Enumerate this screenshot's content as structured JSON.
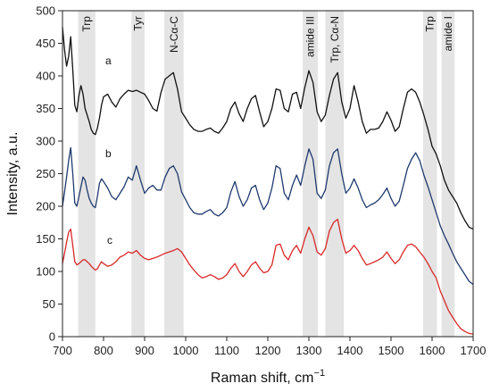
{
  "chart_data": {
    "type": "line",
    "xlabel": "Raman shift, cm",
    "xlabel_sup": "−1",
    "ylabel": "Intensity, a.u.",
    "xlim": [
      700,
      1700
    ],
    "ylim": [
      0,
      500
    ],
    "xticks": [
      700,
      800,
      900,
      1000,
      1100,
      1200,
      1300,
      1400,
      1500,
      1600,
      1700
    ],
    "yticks": [
      0,
      50,
      100,
      150,
      200,
      250,
      300,
      350,
      400,
      450,
      500
    ],
    "grid": false,
    "bands": [
      {
        "label": "Trp",
        "x0": 738,
        "x1": 780
      },
      {
        "label": "Tyr",
        "x0": 868,
        "x1": 900
      },
      {
        "label": "N-Cα-C",
        "x0": 948,
        "x1": 995
      },
      {
        "label": "amide III",
        "x0": 1285,
        "x1": 1322
      },
      {
        "label": "Trp, Cα-N",
        "x0": 1340,
        "x1": 1385
      },
      {
        "label": "Trp",
        "x0": 1578,
        "x1": 1612
      },
      {
        "label": "amide I",
        "x0": 1623,
        "x1": 1655
      }
    ],
    "series": [
      {
        "name": "a",
        "color": "#111111",
        "x": [
          700,
          705,
          710,
          715,
          720,
          725,
          730,
          735,
          740,
          745,
          750,
          755,
          760,
          765,
          770,
          775,
          780,
          785,
          790,
          795,
          800,
          810,
          820,
          830,
          840,
          850,
          860,
          870,
          880,
          890,
          900,
          910,
          920,
          930,
          940,
          950,
          960,
          970,
          980,
          990,
          1000,
          1010,
          1020,
          1030,
          1040,
          1050,
          1060,
          1070,
          1080,
          1090,
          1100,
          1110,
          1120,
          1130,
          1140,
          1150,
          1160,
          1170,
          1180,
          1190,
          1200,
          1210,
          1220,
          1230,
          1240,
          1250,
          1260,
          1270,
          1280,
          1290,
          1300,
          1310,
          1320,
          1330,
          1340,
          1350,
          1360,
          1370,
          1380,
          1390,
          1400,
          1410,
          1420,
          1430,
          1440,
          1450,
          1460,
          1470,
          1480,
          1490,
          1500,
          1510,
          1520,
          1530,
          1540,
          1550,
          1560,
          1570,
          1580,
          1590,
          1600,
          1610,
          1620,
          1630,
          1640,
          1650,
          1660,
          1670,
          1680,
          1690,
          1700
        ],
        "y": [
          475,
          440,
          415,
          430,
          460,
          410,
          355,
          345,
          370,
          385,
          372,
          350,
          340,
          330,
          318,
          312,
          310,
          320,
          335,
          355,
          368,
          372,
          360,
          352,
          365,
          372,
          378,
          376,
          378,
          375,
          372,
          362,
          350,
          346,
          375,
          395,
          400,
          405,
          380,
          345,
          335,
          325,
          318,
          315,
          315,
          318,
          320,
          315,
          312,
          320,
          330,
          350,
          360,
          342,
          330,
          350,
          365,
          370,
          345,
          322,
          330,
          350,
          380,
          378,
          350,
          345,
          372,
          375,
          350,
          382,
          408,
          390,
          345,
          330,
          340,
          370,
          395,
          405,
          360,
          335,
          350,
          385,
          360,
          330,
          312,
          318,
          318,
          320,
          330,
          345,
          332,
          315,
          322,
          350,
          375,
          380,
          375,
          360,
          340,
          318,
          292,
          280,
          262,
          240,
          225,
          215,
          205,
          190,
          178,
          168,
          165
        ]
      },
      {
        "name": "b",
        "color": "#1f3a6e",
        "x": [
          700,
          705,
          710,
          715,
          720,
          725,
          730,
          735,
          740,
          745,
          750,
          755,
          760,
          765,
          770,
          775,
          780,
          785,
          790,
          795,
          800,
          810,
          820,
          830,
          840,
          850,
          860,
          870,
          880,
          890,
          900,
          910,
          920,
          930,
          940,
          950,
          960,
          970,
          980,
          990,
          1000,
          1010,
          1020,
          1030,
          1040,
          1050,
          1060,
          1070,
          1080,
          1090,
          1100,
          1110,
          1120,
          1130,
          1140,
          1150,
          1160,
          1170,
          1180,
          1190,
          1200,
          1210,
          1220,
          1230,
          1240,
          1250,
          1260,
          1270,
          1280,
          1290,
          1300,
          1310,
          1320,
          1330,
          1340,
          1350,
          1360,
          1370,
          1380,
          1390,
          1400,
          1410,
          1420,
          1430,
          1440,
          1450,
          1460,
          1470,
          1480,
          1490,
          1500,
          1510,
          1520,
          1530,
          1540,
          1550,
          1560,
          1570,
          1580,
          1590,
          1600,
          1610,
          1620,
          1630,
          1640,
          1650,
          1660,
          1670,
          1680,
          1690,
          1700
        ],
        "y": [
          200,
          222,
          245,
          270,
          290,
          250,
          205,
          200,
          215,
          230,
          245,
          240,
          225,
          212,
          205,
          200,
          198,
          215,
          235,
          242,
          238,
          228,
          215,
          210,
          220,
          230,
          245,
          240,
          262,
          240,
          220,
          228,
          232,
          225,
          225,
          245,
          258,
          262,
          250,
          222,
          210,
          198,
          190,
          188,
          188,
          192,
          195,
          188,
          185,
          190,
          198,
          222,
          238,
          215,
          200,
          210,
          228,
          232,
          210,
          195,
          205,
          228,
          262,
          258,
          220,
          210,
          232,
          248,
          232,
          262,
          288,
          272,
          220,
          212,
          225,
          262,
          282,
          288,
          250,
          220,
          228,
          242,
          228,
          210,
          198,
          202,
          205,
          210,
          218,
          228,
          212,
          200,
          208,
          232,
          258,
          272,
          282,
          270,
          248,
          230,
          210,
          190,
          170,
          155,
          142,
          128,
          115,
          105,
          95,
          85,
          80
        ]
      },
      {
        "name": "c",
        "color": "#d92828",
        "x": [
          700,
          705,
          710,
          715,
          720,
          725,
          730,
          735,
          740,
          745,
          750,
          755,
          760,
          765,
          770,
          775,
          780,
          785,
          790,
          795,
          800,
          810,
          820,
          830,
          840,
          850,
          860,
          870,
          880,
          890,
          900,
          910,
          920,
          930,
          940,
          950,
          960,
          970,
          980,
          990,
          1000,
          1010,
          1020,
          1030,
          1040,
          1050,
          1060,
          1070,
          1080,
          1090,
          1100,
          1110,
          1120,
          1130,
          1140,
          1150,
          1160,
          1170,
          1180,
          1190,
          1200,
          1210,
          1220,
          1230,
          1240,
          1250,
          1260,
          1270,
          1280,
          1290,
          1300,
          1310,
          1320,
          1330,
          1340,
          1350,
          1360,
          1370,
          1380,
          1390,
          1400,
          1410,
          1420,
          1430,
          1440,
          1450,
          1460,
          1470,
          1480,
          1490,
          1500,
          1510,
          1520,
          1530,
          1540,
          1550,
          1560,
          1570,
          1580,
          1590,
          1600,
          1610,
          1620,
          1630,
          1640,
          1650,
          1660,
          1670,
          1680,
          1690,
          1700
        ],
        "y": [
          112,
          128,
          145,
          160,
          165,
          140,
          115,
          110,
          112,
          115,
          118,
          118,
          115,
          112,
          108,
          105,
          102,
          104,
          110,
          115,
          112,
          108,
          110,
          115,
          122,
          125,
          130,
          128,
          132,
          125,
          120,
          118,
          120,
          122,
          125,
          128,
          130,
          132,
          135,
          130,
          120,
          110,
          102,
          95,
          90,
          92,
          95,
          92,
          88,
          90,
          95,
          105,
          112,
          100,
          92,
          100,
          110,
          115,
          105,
          98,
          100,
          110,
          140,
          142,
          125,
          118,
          132,
          140,
          128,
          150,
          168,
          155,
          130,
          125,
          135,
          162,
          175,
          180,
          150,
          128,
          132,
          140,
          132,
          120,
          110,
          112,
          115,
          118,
          122,
          130,
          120,
          112,
          118,
          130,
          140,
          142,
          138,
          130,
          122,
          112,
          100,
          90,
          70,
          55,
          40,
          30,
          20,
          12,
          8,
          5,
          4
        ]
      }
    ]
  }
}
